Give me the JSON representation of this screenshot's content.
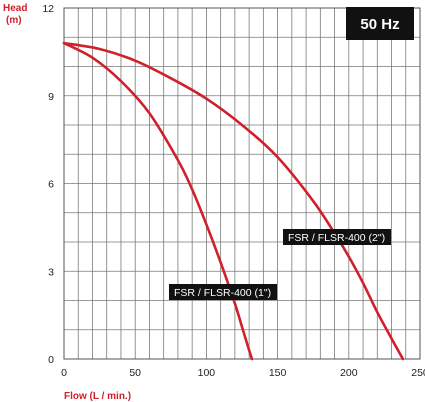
{
  "chart_data": {
    "type": "line",
    "badge": "50 Hz",
    "ylabel_line1": "Head",
    "ylabel_line2": "(m)",
    "xlabel": "Flow (L / min.)",
    "xlim": [
      0,
      250
    ],
    "ylim": [
      0,
      12
    ],
    "x_ticks": [
      0,
      50,
      100,
      150,
      200,
      250
    ],
    "y_ticks": [
      0,
      3,
      6,
      9,
      12
    ],
    "x_grid_step": 10,
    "y_grid_step": 1,
    "grid": true,
    "series": [
      {
        "name": "FSR / FLSR-400 (1\")",
        "color": "#d0202b",
        "x": [
          0,
          20,
          40,
          60,
          80,
          90,
          100,
          110,
          120,
          125,
          130,
          132
        ],
        "y": [
          10.8,
          10.3,
          9.5,
          8.4,
          6.8,
          5.8,
          4.6,
          3.3,
          1.9,
          1.1,
          0.3,
          0
        ]
      },
      {
        "name": "FSR / FLSR-400 (2\")",
        "color": "#d0202b",
        "x": [
          0,
          25,
          50,
          75,
          100,
          125,
          150,
          175,
          190,
          200,
          210,
          220,
          230,
          238
        ],
        "y": [
          10.8,
          10.6,
          10.2,
          9.6,
          8.9,
          8.0,
          6.9,
          5.4,
          4.3,
          3.5,
          2.6,
          1.6,
          0.7,
          0
        ]
      }
    ]
  }
}
